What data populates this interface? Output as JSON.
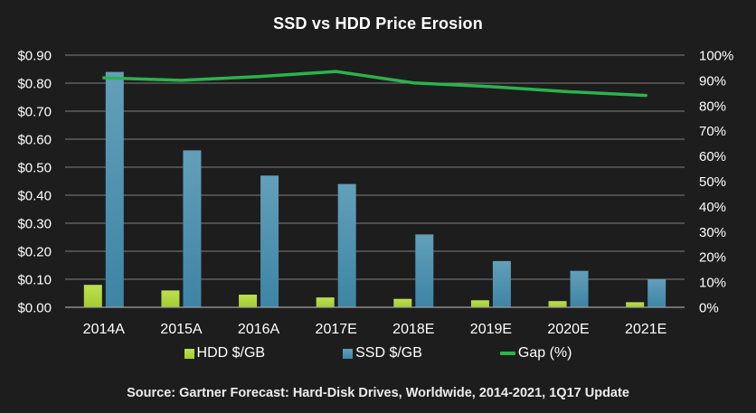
{
  "source_note": "Source: Gartner Forecast: Hard-Disk Drives, Worldwide, 2014-2021, 1Q17 Update",
  "colors": {
    "background": "#1d1d1d",
    "gridline": "#7e7e7e",
    "text": "#ffffff",
    "hdd_bar": "#a2cc31",
    "ssd_bar": "#3e84a4",
    "gap_line": "#2bb34d"
  },
  "chart_data": {
    "type": "combo-bar-line",
    "title": "SSD vs HDD Price Erosion",
    "categories": [
      "2014A",
      "2015A",
      "2016A",
      "2017E",
      "2018E",
      "2019E",
      "2020E",
      "2021E"
    ],
    "series": [
      {
        "name": "HDD $/GB",
        "type": "bar",
        "axis": "left",
        "color": "#a2cc31",
        "color_light": "#bddf54",
        "values": [
          0.08,
          0.06,
          0.045,
          0.035,
          0.03,
          0.025,
          0.022,
          0.018
        ]
      },
      {
        "name": "SSD $/GB",
        "type": "bar",
        "axis": "left",
        "color": "#3e84a4",
        "color_light": "#639fba",
        "values": [
          0.84,
          0.56,
          0.47,
          0.44,
          0.26,
          0.165,
          0.13,
          0.1
        ]
      },
      {
        "name": "Gap (%)",
        "type": "line",
        "axis": "right",
        "color": "#2bb34d",
        "values": [
          91,
          90,
          91.5,
          93.5,
          89,
          87.5,
          85.5,
          84
        ]
      }
    ],
    "left_axis": {
      "min": 0,
      "max": 0.9,
      "tick_step": 0.1,
      "tick_labels": [
        "$0.00",
        "$0.10",
        "$0.20",
        "$0.30",
        "$0.40",
        "$0.50",
        "$0.60",
        "$0.70",
        "$0.80",
        "$0.90"
      ]
    },
    "right_axis": {
      "min": 0,
      "max": 100,
      "tick_step": 10,
      "tick_labels": [
        "0%",
        "10%",
        "20%",
        "30%",
        "40%",
        "50%",
        "60%",
        "70%",
        "80%",
        "90%",
        "100%"
      ]
    },
    "grid": true,
    "legend_position": "bottom"
  }
}
